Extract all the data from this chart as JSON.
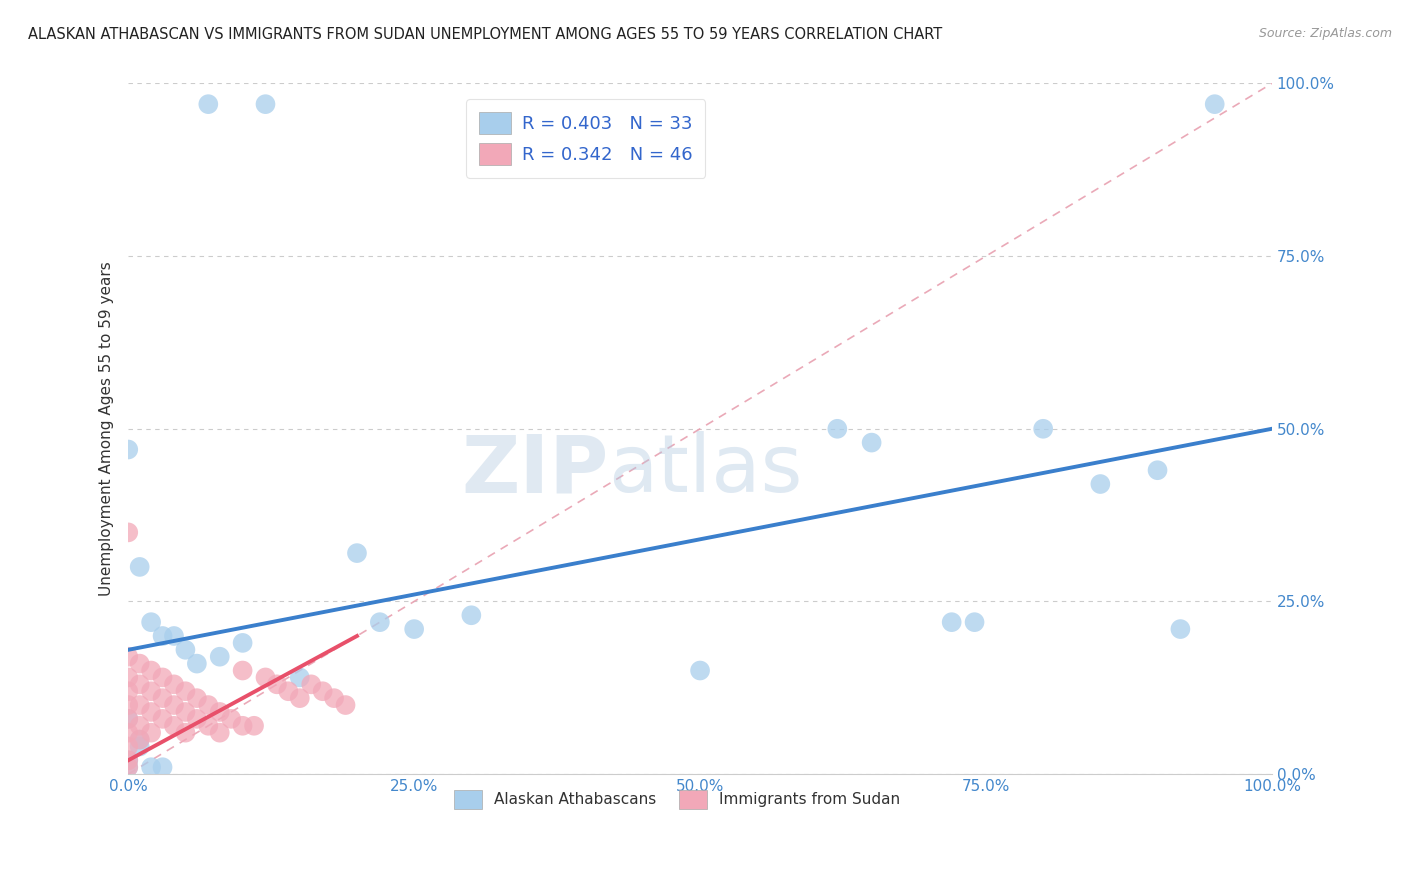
{
  "title": "ALASKAN ATHABASCAN VS IMMIGRANTS FROM SUDAN UNEMPLOYMENT AMONG AGES 55 TO 59 YEARS CORRELATION CHART",
  "source": "Source: ZipAtlas.com",
  "ylabel": "Unemployment Among Ages 55 to 59 years",
  "xlim": [
    0,
    1
  ],
  "ylim": [
    0,
    1
  ],
  "xticks": [
    0.0,
    0.25,
    0.5,
    0.75,
    1.0
  ],
  "yticks": [
    0.0,
    0.25,
    0.5,
    0.75,
    1.0
  ],
  "xticklabels": [
    "0.0%",
    "25.0%",
    "50.0%",
    "75.0%",
    "100.0%"
  ],
  "yticklabels": [
    "0.0%",
    "25.0%",
    "50.0%",
    "75.0%",
    "100.0%"
  ],
  "watermark_zip": "ZIP",
  "watermark_atlas": "atlas",
  "legend_labels": [
    "Alaskan Athabascans",
    "Immigrants from Sudan"
  ],
  "R_blue": 0.403,
  "N_blue": 33,
  "R_pink": 0.342,
  "N_pink": 46,
  "blue_color": "#A8CEEC",
  "pink_color": "#F2A8B8",
  "blue_line_color": "#3A7FCC",
  "pink_line_color": "#E8506A",
  "ref_line_color": "#E8A0B0",
  "title_fontsize": 10.5,
  "axis_label_fontsize": 11,
  "tick_fontsize": 11,
  "blue_x": [
    0.07,
    0.12,
    0.95,
    0.0,
    0.01,
    0.02,
    0.03,
    0.0,
    0.01,
    0.0,
    0.22,
    0.25,
    0.3,
    0.5,
    0.62,
    0.65,
    0.72,
    0.74,
    0.8,
    0.85,
    0.9,
    0.92,
    0.0,
    0.01,
    0.02,
    0.03,
    0.04,
    0.05,
    0.06,
    0.08,
    0.1,
    0.15,
    0.2
  ],
  "blue_y": [
    0.97,
    0.97,
    0.97,
    0.47,
    0.3,
    0.22,
    0.2,
    0.08,
    0.05,
    0.02,
    0.22,
    0.21,
    0.23,
    0.15,
    0.5,
    0.48,
    0.22,
    0.22,
    0.5,
    0.42,
    0.44,
    0.21,
    0.01,
    0.04,
    0.01,
    0.01,
    0.2,
    0.18,
    0.16,
    0.17,
    0.19,
    0.14,
    0.32
  ],
  "pink_x": [
    0.0,
    0.0,
    0.0,
    0.0,
    0.0,
    0.0,
    0.0,
    0.0,
    0.0,
    0.0,
    0.01,
    0.01,
    0.01,
    0.01,
    0.01,
    0.02,
    0.02,
    0.02,
    0.02,
    0.03,
    0.03,
    0.03,
    0.04,
    0.04,
    0.04,
    0.05,
    0.05,
    0.05,
    0.06,
    0.06,
    0.07,
    0.07,
    0.08,
    0.08,
    0.09,
    0.1,
    0.1,
    0.11,
    0.12,
    0.13,
    0.14,
    0.15,
    0.16,
    0.17,
    0.18,
    0.19
  ],
  "pink_y": [
    0.35,
    0.17,
    0.14,
    0.12,
    0.1,
    0.08,
    0.06,
    0.04,
    0.02,
    0.01,
    0.16,
    0.13,
    0.1,
    0.07,
    0.05,
    0.15,
    0.12,
    0.09,
    0.06,
    0.14,
    0.11,
    0.08,
    0.13,
    0.1,
    0.07,
    0.12,
    0.09,
    0.06,
    0.11,
    0.08,
    0.1,
    0.07,
    0.09,
    0.06,
    0.08,
    0.15,
    0.07,
    0.07,
    0.14,
    0.13,
    0.12,
    0.11,
    0.13,
    0.12,
    0.11,
    0.1
  ],
  "blue_trend": [
    0.18,
    0.5
  ],
  "pink_trend_x": [
    0.0,
    0.19
  ],
  "pink_trend_y": [
    0.02,
    0.18
  ]
}
